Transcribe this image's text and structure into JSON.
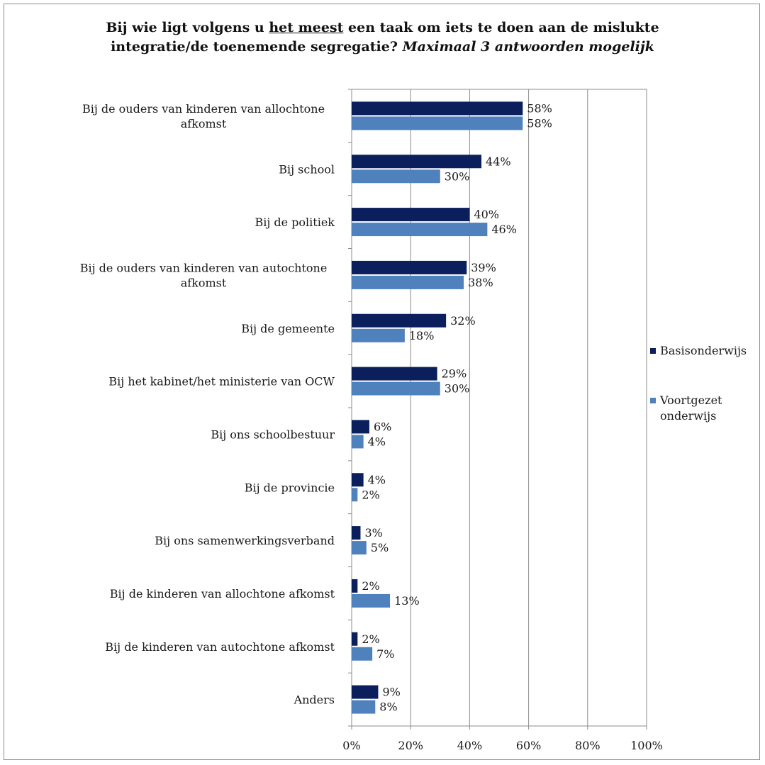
{
  "chart_data": {
    "type": "bar",
    "orientation": "horizontal",
    "title": {
      "part1": "Bij wie ligt volgens u ",
      "underlined": "het meest",
      "part2": " een taak om iets te doen aan de mislukte",
      "line2": "integratie/de toenemende segregatie? ",
      "italic": "Maximaal 3 antwoorden mogelijk"
    },
    "categories": [
      [
        "Bij de ouders van kinderen van allochtone",
        "afkomst"
      ],
      [
        "Bij school"
      ],
      [
        "Bij de politiek"
      ],
      [
        "Bij de ouders van kinderen van autochtone",
        "afkomst"
      ],
      [
        "Bij de gemeente"
      ],
      [
        "Bij het kabinet/het ministerie van OCW"
      ],
      [
        "Bij ons schoolbestuur"
      ],
      [
        "Bij de provincie"
      ],
      [
        "Bij ons samenwerkingsverband"
      ],
      [
        "Bij de kinderen van allochtone afkomst"
      ],
      [
        "Bij de kinderen van autochtone afkomst"
      ],
      [
        "Anders"
      ]
    ],
    "series": [
      {
        "name": "Basisonderwijs",
        "color": "#0a1f5c",
        "values": [
          58,
          44,
          40,
          39,
          32,
          29,
          6,
          4,
          3,
          2,
          2,
          9
        ],
        "labels": [
          "58%",
          "44%",
          "40%",
          "39%",
          "32%",
          "29%",
          "6%",
          "4%",
          "3%",
          "2%",
          "2%",
          "9%"
        ]
      },
      {
        "name": "Voortgezet onderwijs",
        "color": "#4f81bd",
        "values": [
          58,
          30,
          46,
          38,
          18,
          30,
          4,
          2,
          5,
          13,
          7,
          8
        ],
        "labels": [
          "58%",
          "30%",
          "46%",
          "38%",
          "18%",
          "30%",
          "4%",
          "2%",
          "5%",
          "13%",
          "7%",
          "8%"
        ]
      }
    ],
    "legend": {
      "position": "right",
      "entries": [
        [
          "Basisonderwijs"
        ],
        [
          "Voortgezet",
          "onderwijs"
        ]
      ]
    },
    "xaxis": {
      "min": 0,
      "max": 100,
      "step": 20,
      "tick_labels": [
        "0%",
        "20%",
        "40%",
        "60%",
        "80%",
        "100%"
      ],
      "gridlines": true
    }
  }
}
